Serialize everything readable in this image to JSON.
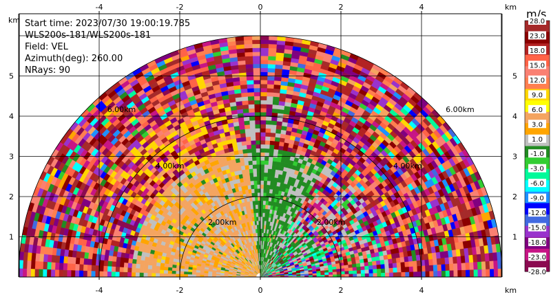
{
  "info": {
    "start_time": "Start time: 2023/07/30 19:00:19.785",
    "instrument": "WLS200s-181/WLS200s-181",
    "field": "Field: VEL",
    "azimuth": "Azimuth(deg): 260.00",
    "nrays": "NRays: 90"
  },
  "chart_data": {
    "type": "heatmap",
    "projection": "polar-rhi",
    "x_unit_label": "km",
    "y_unit_label": "km",
    "xlim": [
      -6,
      6
    ],
    "ylim": [
      0,
      6
    ],
    "x_ticks": [
      -4,
      -2,
      0,
      2,
      4
    ],
    "y_ticks": [
      1,
      2,
      3,
      4,
      5
    ],
    "max_range_km": 6,
    "grid": true,
    "range_rings": [
      {
        "range_km": 2,
        "label": "2.00km",
        "label_left_x": -1.3,
        "label_left_y": 1.3,
        "label_right_x": 1.4,
        "label_right_y": 1.3
      },
      {
        "range_km": 4,
        "label": "4.00km",
        "label_left_x": -2.6,
        "label_left_y": 2.7,
        "label_right_x": 3.3,
        "label_right_y": 2.7
      },
      {
        "range_km": 6,
        "label": "6.00km",
        "label_left_x": -3.8,
        "label_left_y": 4.1,
        "label_right_x": 4.6,
        "label_right_y": 4.1
      }
    ],
    "colorbar": {
      "unit": "m/s",
      "tick_labels": [
        "28.0",
        "23.0",
        "18.0",
        "15.0",
        "12.0",
        "9.0",
        "6.0",
        "3.0",
        "1.0",
        "-1.0",
        "-3.0",
        "-6.0",
        "-9.0",
        "-12.0",
        "-15.0",
        "-18.0",
        "-23.0",
        "-28.0"
      ],
      "colors": [
        "#a52a2a",
        "#8b0000",
        "#b22222",
        "#ff6347",
        "#fa8072",
        "#ff7f50",
        "#ffd700",
        "#ffff00",
        "#f4a460",
        "#ffa500",
        "#c0c0c0",
        "#228b22",
        "#32cd32",
        "#00fa9a",
        "#00ffff",
        "#1e90ff",
        "#0000ff",
        "#4169e1",
        "#9932cc",
        "#800080",
        "#c71585",
        "#8b0a50"
      ]
    }
  }
}
